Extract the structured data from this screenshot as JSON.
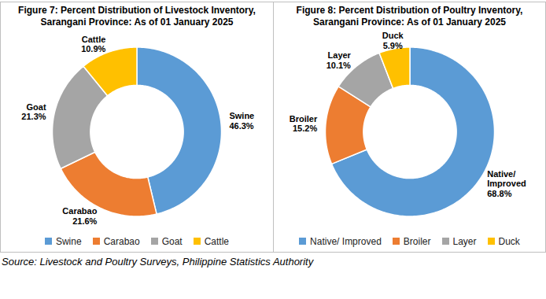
{
  "chart_data": [
    {
      "type": "donut",
      "title": "Figure 7: Percent Distribution of Livestock Inventory, Sarangani Province: As of 01 January 2025",
      "categories": [
        "Swine",
        "Carabao",
        "Goat",
        "Cattle"
      ],
      "values": [
        46.3,
        21.6,
        21.3,
        10.9
      ],
      "value_labels": [
        "46.3%",
        "21.6%",
        "21.3%",
        "10.9%"
      ],
      "colors": [
        "#5b9bd5",
        "#ed7d31",
        "#a5a5a5",
        "#ffc000"
      ],
      "data_labels": true,
      "legend": "bottom"
    },
    {
      "type": "donut",
      "title": "Figure 8: Percent Distribution of Poultry Inventory, Sarangani Province: As of 01 January 2025",
      "categories": [
        "Native/ Improved",
        "Broiler",
        "Layer",
        "Duck"
      ],
      "values": [
        68.8,
        15.2,
        10.1,
        5.9
      ],
      "value_labels": [
        "68.8%",
        "15.2%",
        "10.1%",
        "5.9%"
      ],
      "colors": [
        "#5b9bd5",
        "#ed7d31",
        "#a5a5a5",
        "#ffc000"
      ],
      "data_labels": true,
      "legend": "bottom"
    }
  ],
  "source": "Source: Livestock and Poultry Surveys, Philippine Statistics Authority"
}
